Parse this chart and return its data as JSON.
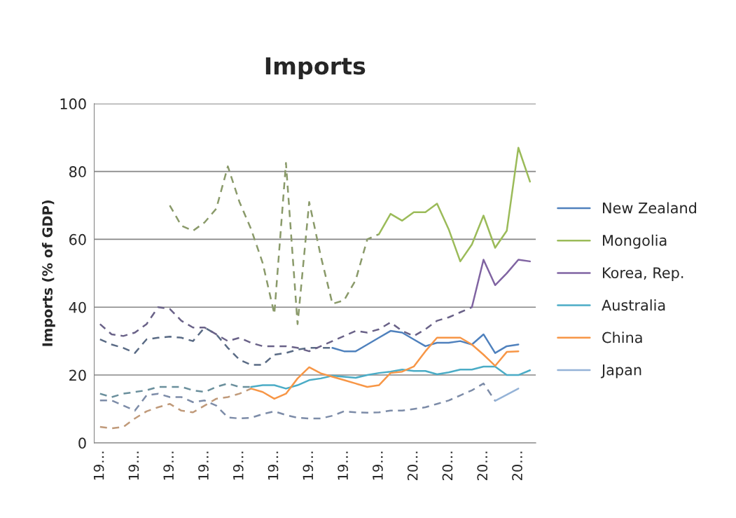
{
  "chart_data": {
    "type": "line",
    "title": "Imports",
    "ylabel": "Imports (% of GDP)",
    "categories": [
      "19…",
      null,
      null,
      "19…",
      null,
      null,
      "19…",
      null,
      null,
      "19…",
      null,
      null,
      "19…",
      null,
      null,
      "19…",
      null,
      null,
      "19…",
      null,
      null,
      "19…",
      null,
      null,
      "19…",
      null,
      null,
      "20…",
      null,
      null,
      "20…",
      null,
      null,
      "20…",
      null,
      null,
      "20…",
      null
    ],
    "ylim": [
      0,
      100
    ],
    "yticks": [
      0,
      20,
      40,
      60,
      80,
      100
    ],
    "grid": "y",
    "legend": "right",
    "series": [
      {
        "color": "#5a6b85",
        "line_style": "dashed",
        "values": [
          30.5,
          29,
          28,
          26.5,
          30.5,
          31,
          31.3,
          31,
          30,
          34,
          32,
          28,
          24.5,
          23,
          23,
          26,
          26.5,
          27.5,
          28,
          28,
          28,
          null,
          null,
          null,
          null,
          null,
          null,
          null,
          null,
          null,
          null,
          null,
          null,
          null,
          null,
          null,
          null,
          null
        ]
      },
      {
        "color": "#8a9a6a",
        "line_style": "dashed",
        "values": [
          null,
          null,
          null,
          null,
          null,
          null,
          70,
          64,
          62.5,
          65,
          69,
          81.5,
          71,
          63,
          53,
          38,
          82.5,
          35,
          71,
          55,
          41,
          42,
          48,
          60,
          61.5,
          null,
          null,
          null,
          null,
          null,
          null,
          null,
          null,
          null,
          null,
          null,
          null,
          null
        ]
      },
      {
        "color": "#6a6288",
        "line_style": "dashed",
        "values": [
          35,
          32,
          31.5,
          32.5,
          35,
          40,
          39.5,
          36,
          34,
          34,
          32,
          30,
          31,
          29.5,
          28.5,
          28.5,
          28.5,
          28,
          27,
          28.5,
          30,
          31.5,
          33,
          32.5,
          33.5,
          35.5,
          33,
          31.5,
          33.5,
          36,
          37,
          38.5,
          40,
          null,
          null,
          null,
          null,
          null
        ]
      },
      {
        "color": "#6a8f9c",
        "line_style": "dashed",
        "values": [
          14.5,
          13.5,
          14.5,
          15,
          15.5,
          16.5,
          16.5,
          16.5,
          15.5,
          15,
          16.5,
          17.5,
          16.5,
          16.5,
          null,
          null,
          null,
          null,
          null,
          null,
          null,
          null,
          null,
          null,
          null,
          null,
          null,
          null,
          null,
          null,
          null,
          null,
          null,
          null,
          null,
          null,
          null,
          null
        ]
      },
      {
        "color": "#c09a7a",
        "line_style": "dashed",
        "values": [
          4.7,
          4.3,
          4.7,
          7.2,
          9.3,
          10.5,
          11.5,
          9.5,
          9,
          11,
          13,
          13.5,
          14.5,
          16,
          null,
          null,
          null,
          null,
          null,
          null,
          null,
          null,
          null,
          null,
          null,
          null,
          null,
          null,
          null,
          null,
          null,
          null,
          null,
          null,
          null,
          null,
          null,
          null
        ]
      },
      {
        "color": "#7d8ca8",
        "line_style": "dashed",
        "values": [
          12.5,
          12.5,
          11,
          9.5,
          14,
          14.5,
          13.5,
          13.5,
          12,
          12.5,
          11,
          7.5,
          7.2,
          7.4,
          8.5,
          9.3,
          8.2,
          7.4,
          7.2,
          7.2,
          8,
          9.3,
          9,
          8.9,
          9,
          9.5,
          9.5,
          10,
          10.5,
          11.5,
          12.5,
          14,
          15.5,
          17.5,
          12.4,
          null,
          null,
          null
        ]
      },
      {
        "name": "New Zealand",
        "color": "#4f81bd",
        "line_style": "solid",
        "values": [
          null,
          null,
          null,
          null,
          null,
          null,
          null,
          null,
          null,
          null,
          null,
          null,
          null,
          null,
          null,
          null,
          null,
          null,
          null,
          null,
          28,
          27,
          27,
          29,
          31,
          33,
          32.5,
          30.5,
          28.5,
          29.5,
          29.5,
          30,
          29,
          32,
          26.5,
          28.5,
          29,
          null
        ]
      },
      {
        "name": "Mongolia",
        "color": "#9bbb59",
        "line_style": "solid",
        "values": [
          null,
          null,
          null,
          null,
          null,
          null,
          null,
          null,
          null,
          null,
          null,
          null,
          null,
          null,
          null,
          null,
          null,
          null,
          null,
          null,
          null,
          null,
          null,
          null,
          61.5,
          67.5,
          65.5,
          68,
          68,
          70.5,
          63,
          53.5,
          58.5,
          67,
          57.5,
          62.5,
          87,
          77
        ]
      },
      {
        "name": "Korea, Rep.",
        "color": "#8064a2",
        "line_style": "solid",
        "values": [
          null,
          null,
          null,
          null,
          null,
          null,
          null,
          null,
          null,
          null,
          null,
          null,
          null,
          null,
          null,
          null,
          null,
          null,
          null,
          null,
          null,
          null,
          null,
          null,
          null,
          null,
          null,
          null,
          null,
          null,
          null,
          null,
          40,
          54,
          46.5,
          50,
          54,
          53.5
        ]
      },
      {
        "name": "Australia",
        "color": "#4bacc6",
        "line_style": "solid",
        "values": [
          null,
          null,
          null,
          null,
          null,
          null,
          null,
          null,
          null,
          null,
          null,
          null,
          null,
          16.5,
          17,
          17,
          16,
          17,
          18.5,
          19,
          19.8,
          19.5,
          19.2,
          20,
          20.6,
          21,
          21.6,
          21.2,
          21.2,
          20.2,
          20.8,
          21.6,
          21.6,
          22.5,
          22.5,
          20,
          20,
          21.4
        ]
      },
      {
        "name": "China",
        "color": "#f79646",
        "line_style": "solid",
        "values": [
          null,
          null,
          null,
          null,
          null,
          null,
          null,
          null,
          null,
          null,
          null,
          null,
          null,
          16,
          15,
          13,
          14.5,
          19,
          22.3,
          20.5,
          19.5,
          18.5,
          17.5,
          16.5,
          17,
          20.6,
          21,
          22.5,
          27,
          31,
          31,
          31,
          29,
          26,
          22.7,
          26.8,
          27,
          null
        ]
      },
      {
        "name": "Japan",
        "color": "#95b3d7",
        "line_style": "solid",
        "values": [
          null,
          null,
          null,
          null,
          null,
          null,
          null,
          null,
          null,
          null,
          null,
          null,
          null,
          null,
          null,
          null,
          null,
          null,
          null,
          null,
          null,
          null,
          null,
          null,
          null,
          null,
          null,
          null,
          null,
          null,
          null,
          null,
          null,
          null,
          12.4,
          14.2,
          16,
          null
        ]
      }
    ]
  }
}
